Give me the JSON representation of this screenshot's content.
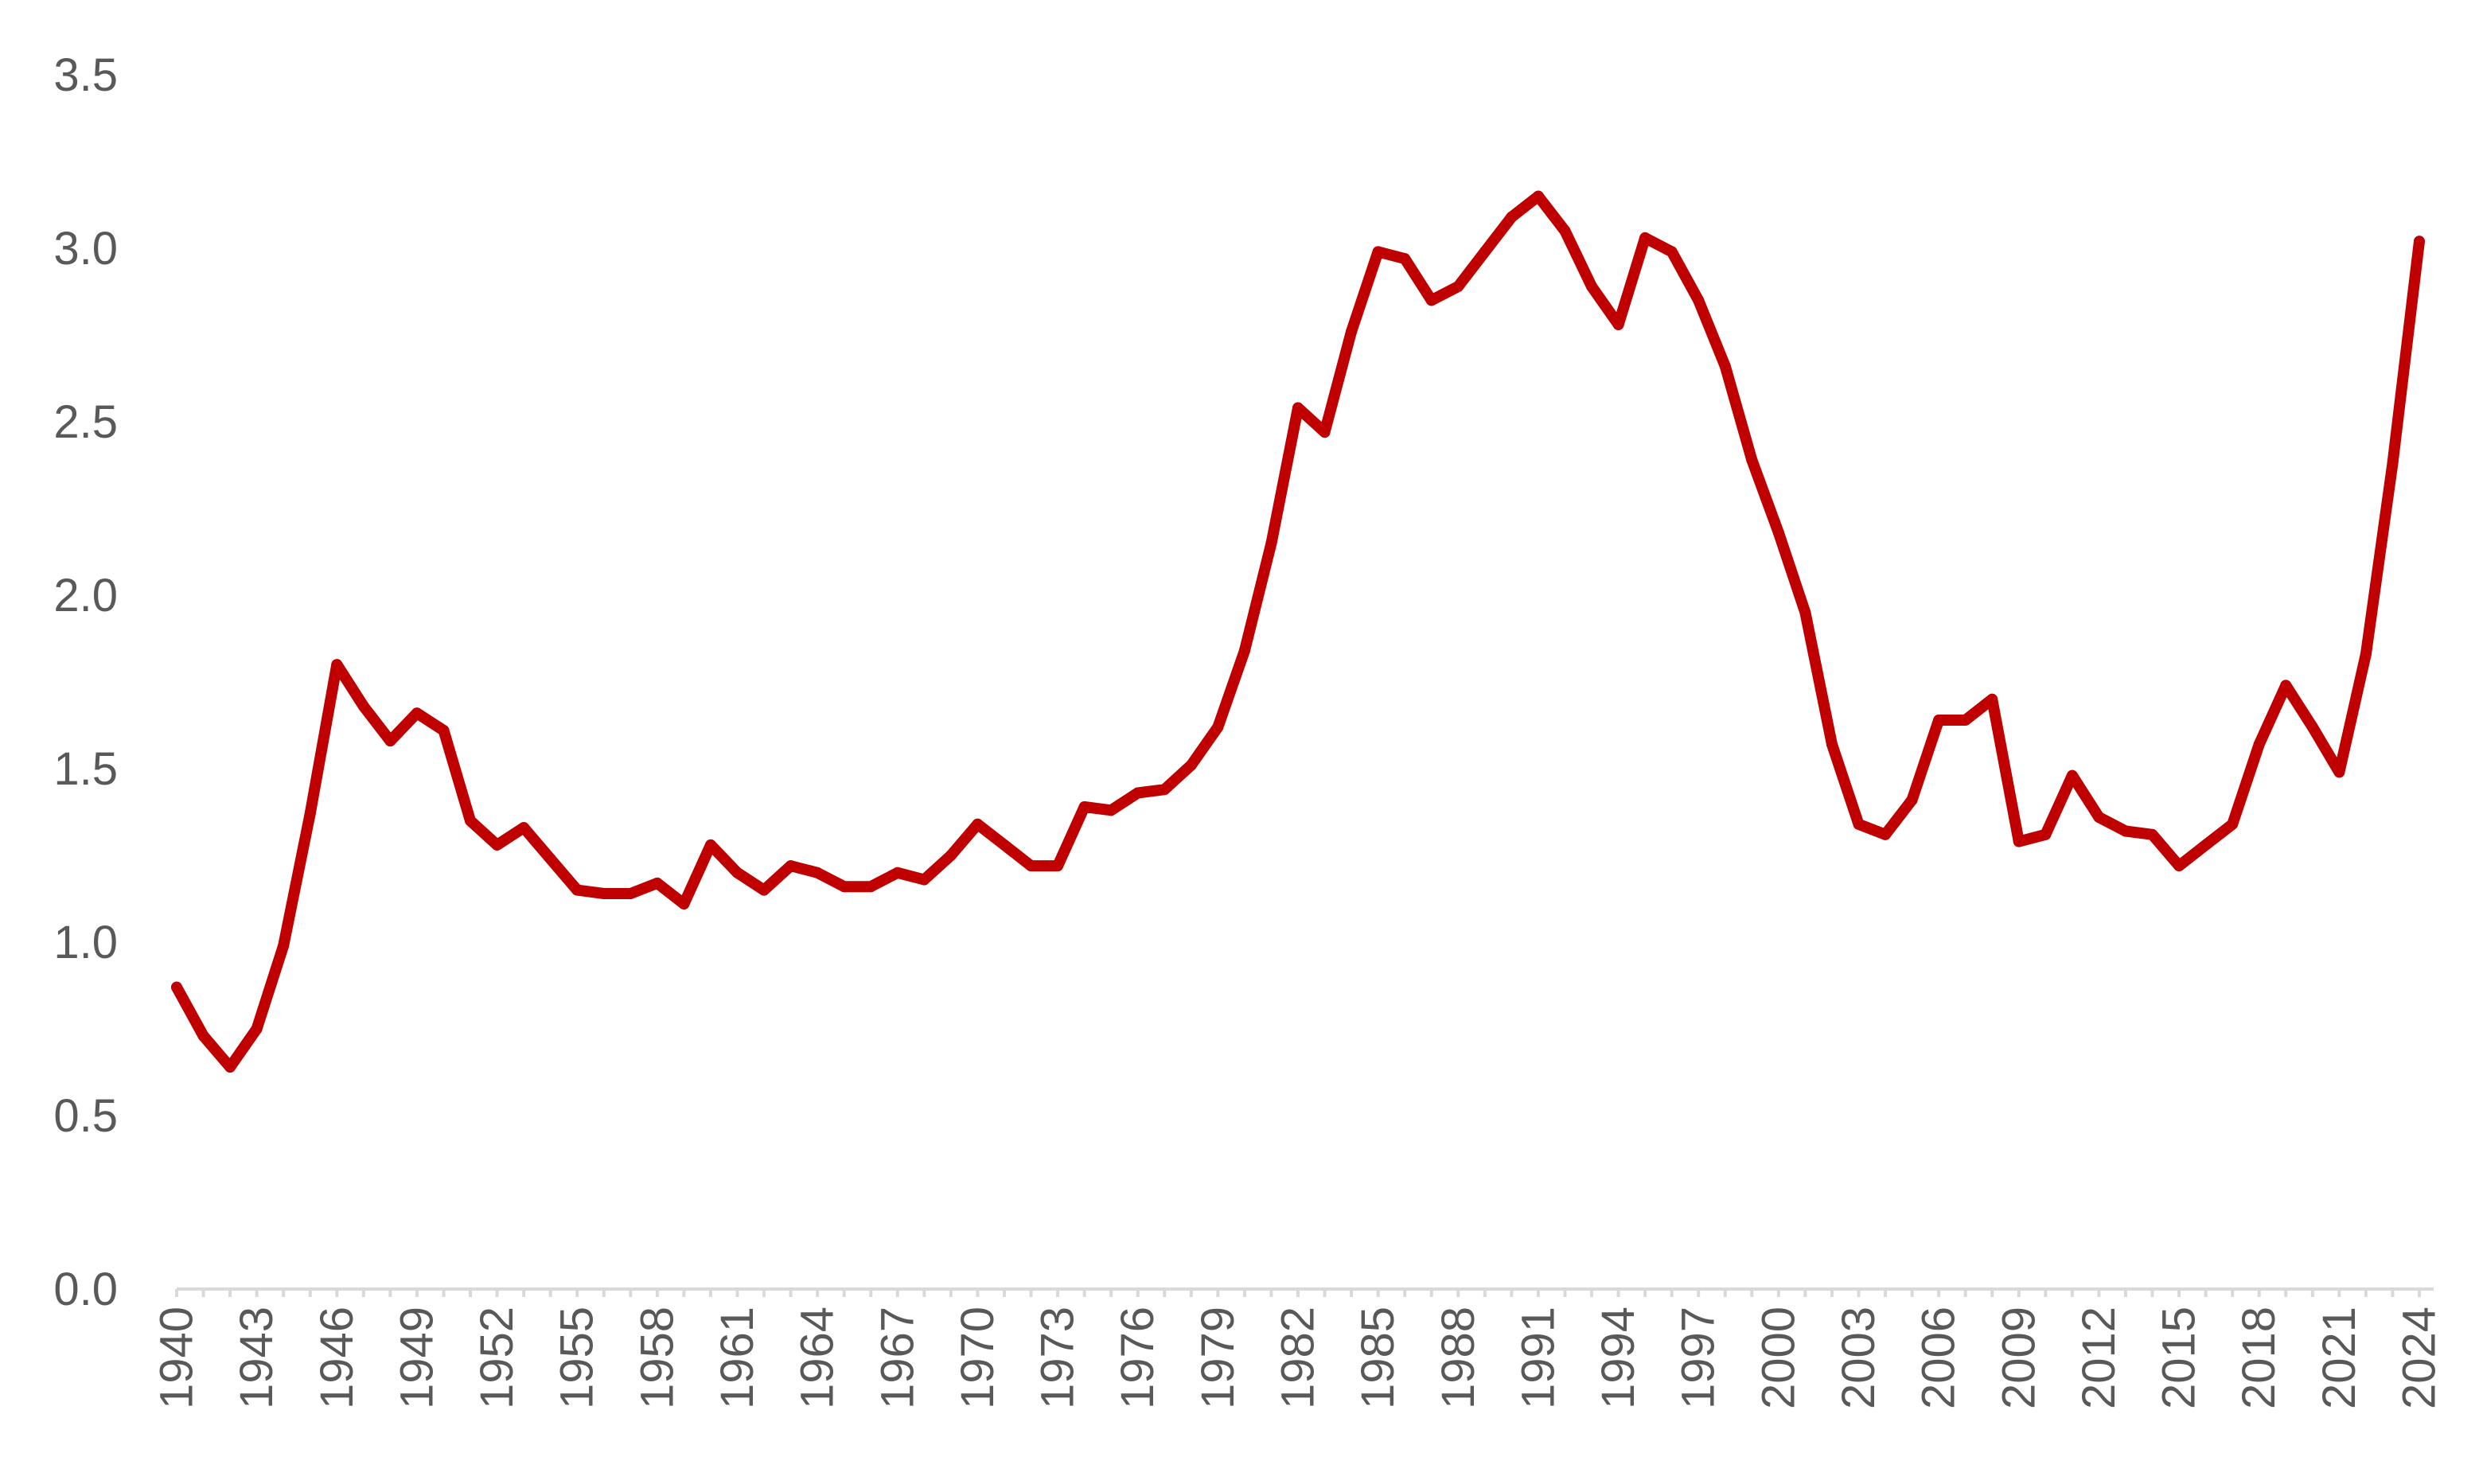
{
  "colors": {
    "series": "#c00000",
    "axis": "#d9d9d9",
    "tick_text": "#595959",
    "background": "#ffffff"
  },
  "chart_data": {
    "type": "line",
    "title": "",
    "xlabel": "",
    "ylabel": "",
    "ylim": [
      0,
      3.5
    ],
    "y_ticks": [
      "0.0",
      "0.5",
      "1.0",
      "1.5",
      "2.0",
      "2.5",
      "3.0",
      "3.5"
    ],
    "y_tick_values": [
      0,
      0.5,
      1.0,
      1.5,
      2.0,
      2.5,
      3.0,
      3.5
    ],
    "x_tick_labels": [
      "1940",
      "1943",
      "1946",
      "1949",
      "1952",
      "1955",
      "1958",
      "1961",
      "1964",
      "1967",
      "1970",
      "1973",
      "1976",
      "1979",
      "1982",
      "1985",
      "1988",
      "1991",
      "1994",
      "1997",
      "2000",
      "2003",
      "2006",
      "2009",
      "2012",
      "2015",
      "2018",
      "2021",
      "2024"
    ],
    "grid": false,
    "legend": "none",
    "x": [
      1940,
      1941,
      1942,
      1943,
      1944,
      1945,
      1946,
      1947,
      1948,
      1949,
      1950,
      1951,
      1952,
      1953,
      1954,
      1955,
      1956,
      1957,
      1958,
      1959,
      1960,
      1961,
      1962,
      1963,
      1964,
      1965,
      1966,
      1967,
      1968,
      1969,
      1970,
      1971,
      1972,
      1973,
      1974,
      1975,
      1976,
      1977,
      1978,
      1979,
      1980,
      1981,
      1982,
      1983,
      1984,
      1985,
      1986,
      1987,
      1988,
      1989,
      1990,
      1991,
      1992,
      1993,
      1994,
      1995,
      1996,
      1997,
      1998,
      1999,
      2000,
      2001,
      2002,
      2003,
      2004,
      2005,
      2006,
      2007,
      2008,
      2009,
      2010,
      2011,
      2012,
      2013,
      2014,
      2015,
      2016,
      2017,
      2018,
      2019,
      2020,
      2021,
      2022,
      2023,
      2024
    ],
    "series": [
      {
        "values": [
          0.87,
          0.73,
          0.64,
          0.75,
          0.99,
          1.37,
          1.8,
          1.68,
          1.58,
          1.66,
          1.61,
          1.35,
          1.28,
          1.33,
          1.24,
          1.15,
          1.14,
          1.14,
          1.17,
          1.11,
          1.28,
          1.2,
          1.15,
          1.22,
          1.2,
          1.16,
          1.16,
          1.2,
          1.18,
          1.25,
          1.34,
          1.28,
          1.22,
          1.22,
          1.39,
          1.38,
          1.43,
          1.44,
          1.51,
          1.62,
          1.84,
          2.15,
          2.54,
          2.47,
          2.76,
          2.99,
          2.97,
          2.85,
          2.89,
          2.99,
          3.09,
          3.15,
          3.05,
          2.89,
          2.78,
          3.03,
          2.99,
          2.85,
          2.66,
          2.39,
          2.18,
          1.95,
          1.57,
          1.34,
          1.31,
          1.41,
          1.64,
          1.64,
          1.7,
          1.29,
          1.31,
          1.48,
          1.36,
          1.32,
          1.31,
          1.22,
          1.28,
          1.34,
          1.57,
          1.74,
          1.62,
          1.49,
          1.83,
          2.38,
          3.02
        ]
      }
    ]
  }
}
